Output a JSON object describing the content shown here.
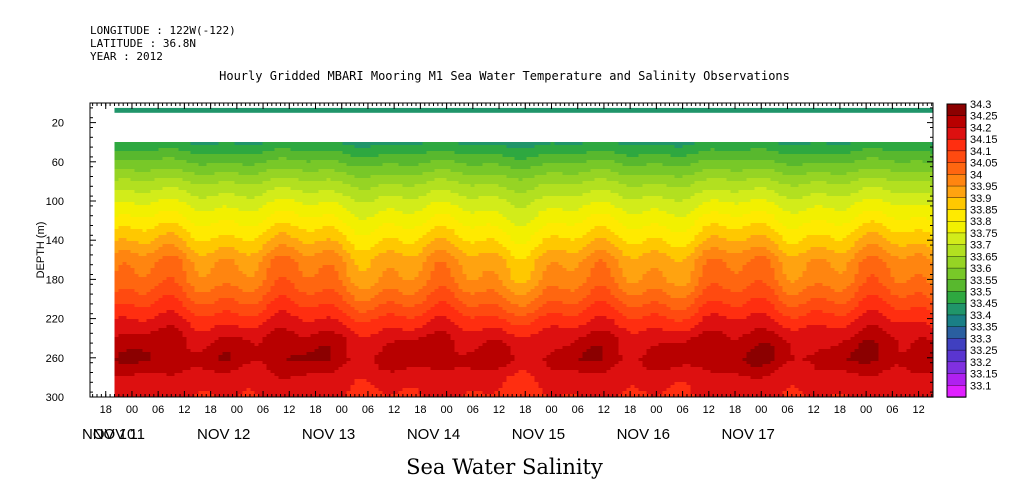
{
  "header": {
    "longitude": "LONGITUDE : 122W(-122)",
    "latitude": "LATITUDE : 36.8N",
    "year": "YEAR : 2012"
  },
  "chart_data": {
    "type": "heatmap",
    "title": "Hourly Gridded MBARI Mooring M1 Sea Water Temperature and Salinity Observations",
    "bottom_title": "Sea Water Salinity",
    "ylabel": "DEPTH (m)",
    "y_axis": {
      "ylim": [
        0,
        300
      ],
      "reversed": true,
      "ticks": [
        20,
        60,
        100,
        140,
        180,
        220,
        260,
        300
      ]
    },
    "x_axis": {
      "hour_ticks": [
        "18",
        "00",
        "06",
        "12",
        "18",
        "00",
        "06",
        "12",
        "18",
        "00",
        "06",
        "12",
        "18",
        "00",
        "06",
        "12",
        "18",
        "00",
        "06",
        "12",
        "18",
        "00",
        "06",
        "12",
        "18",
        "00",
        "06",
        "12",
        "18",
        "00",
        "06",
        "12"
      ],
      "day_labels": [
        "NOV 10",
        "NOV 11",
        "NOV 12",
        "NOV 13",
        "NOV 14",
        "NOV 15",
        "NOV 16",
        "NOV 17"
      ]
    },
    "data_start": "NOV 10 20:00",
    "depth_levels": [
      0,
      10,
      40,
      60,
      80,
      100,
      120,
      140,
      160,
      180,
      200,
      220,
      240,
      260,
      280,
      300
    ],
    "surface_band": {
      "depth": [
        5,
        10
      ],
      "value": 33.45
    },
    "missing_band": {
      "depth": [
        10,
        40
      ]
    },
    "salinity_profile": [
      33.45,
      33.45,
      33.5,
      33.6,
      33.7,
      33.78,
      33.85,
      33.92,
      34.0,
      34.03,
      34.1,
      34.18,
      34.25,
      34.28,
      34.22,
      34.2
    ],
    "colorbar": {
      "labels": [
        "34.3",
        "34.25",
        "34.2",
        "34.15",
        "34.1",
        "34.05",
        "34",
        "33.95",
        "33.9",
        "33.85",
        "33.8",
        "33.75",
        "33.7",
        "33.65",
        "33.6",
        "33.55",
        "33.5",
        "33.45",
        "33.4",
        "33.35",
        "33.3",
        "33.25",
        "33.2",
        "33.15",
        "33.1"
      ],
      "colors": [
        "#8b0000",
        "#b80000",
        "#dd1010",
        "#ff2e10",
        "#ff4a10",
        "#ff6610",
        "#ff8510",
        "#ffa310",
        "#ffc800",
        "#ffea00",
        "#f2f000",
        "#d2ec1a",
        "#b2e020",
        "#96d424",
        "#78c828",
        "#58b82e",
        "#2ea840",
        "#20956a",
        "#1a7f86",
        "#2a5fa0",
        "#4040c0",
        "#5a35d0",
        "#8030e0",
        "#b020f0",
        "#e020ff"
      ]
    }
  }
}
